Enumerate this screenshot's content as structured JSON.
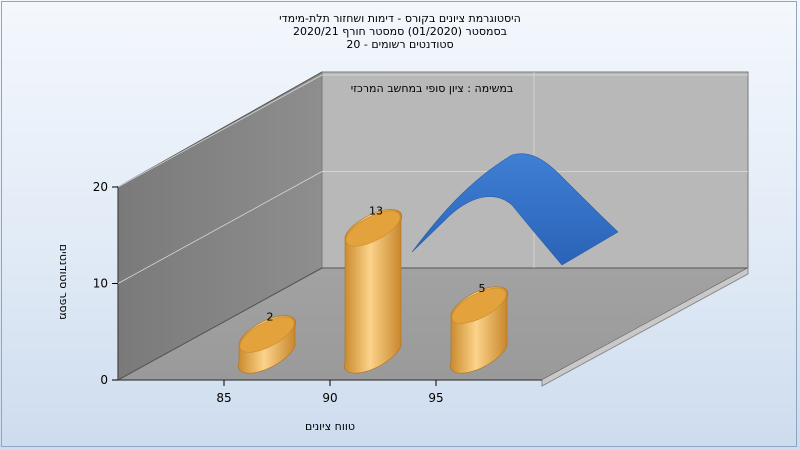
{
  "chart_data": {
    "type": "bar",
    "title_lines": [
      "היסטוגרמת ציונים בקורס - דימות ושחזור תלת-מימדי",
      "בסמסטר   (01/2020)  סמסטר חורף  2020/21",
      "סטודנטים רשומים - 20"
    ],
    "annotation": "במשימה : ציון סופי במחשב המרכזי",
    "xlabel": "טווח ציונים",
    "ylabel": "מספר סטודנטים",
    "x_ticks": [
      85,
      90,
      95
    ],
    "y_ticks": [
      0,
      10,
      20
    ],
    "ylim": [
      0,
      20
    ],
    "bars": [
      {
        "x": 87.5,
        "value": 2,
        "label": "2"
      },
      {
        "x": 92.5,
        "value": 13,
        "label": "13"
      },
      {
        "x": 97.5,
        "value": 5,
        "label": "5"
      }
    ],
    "curve": {
      "type": "area",
      "color": "#2f6cc0"
    },
    "bar_color": "#e8a43a",
    "grid": true
  }
}
